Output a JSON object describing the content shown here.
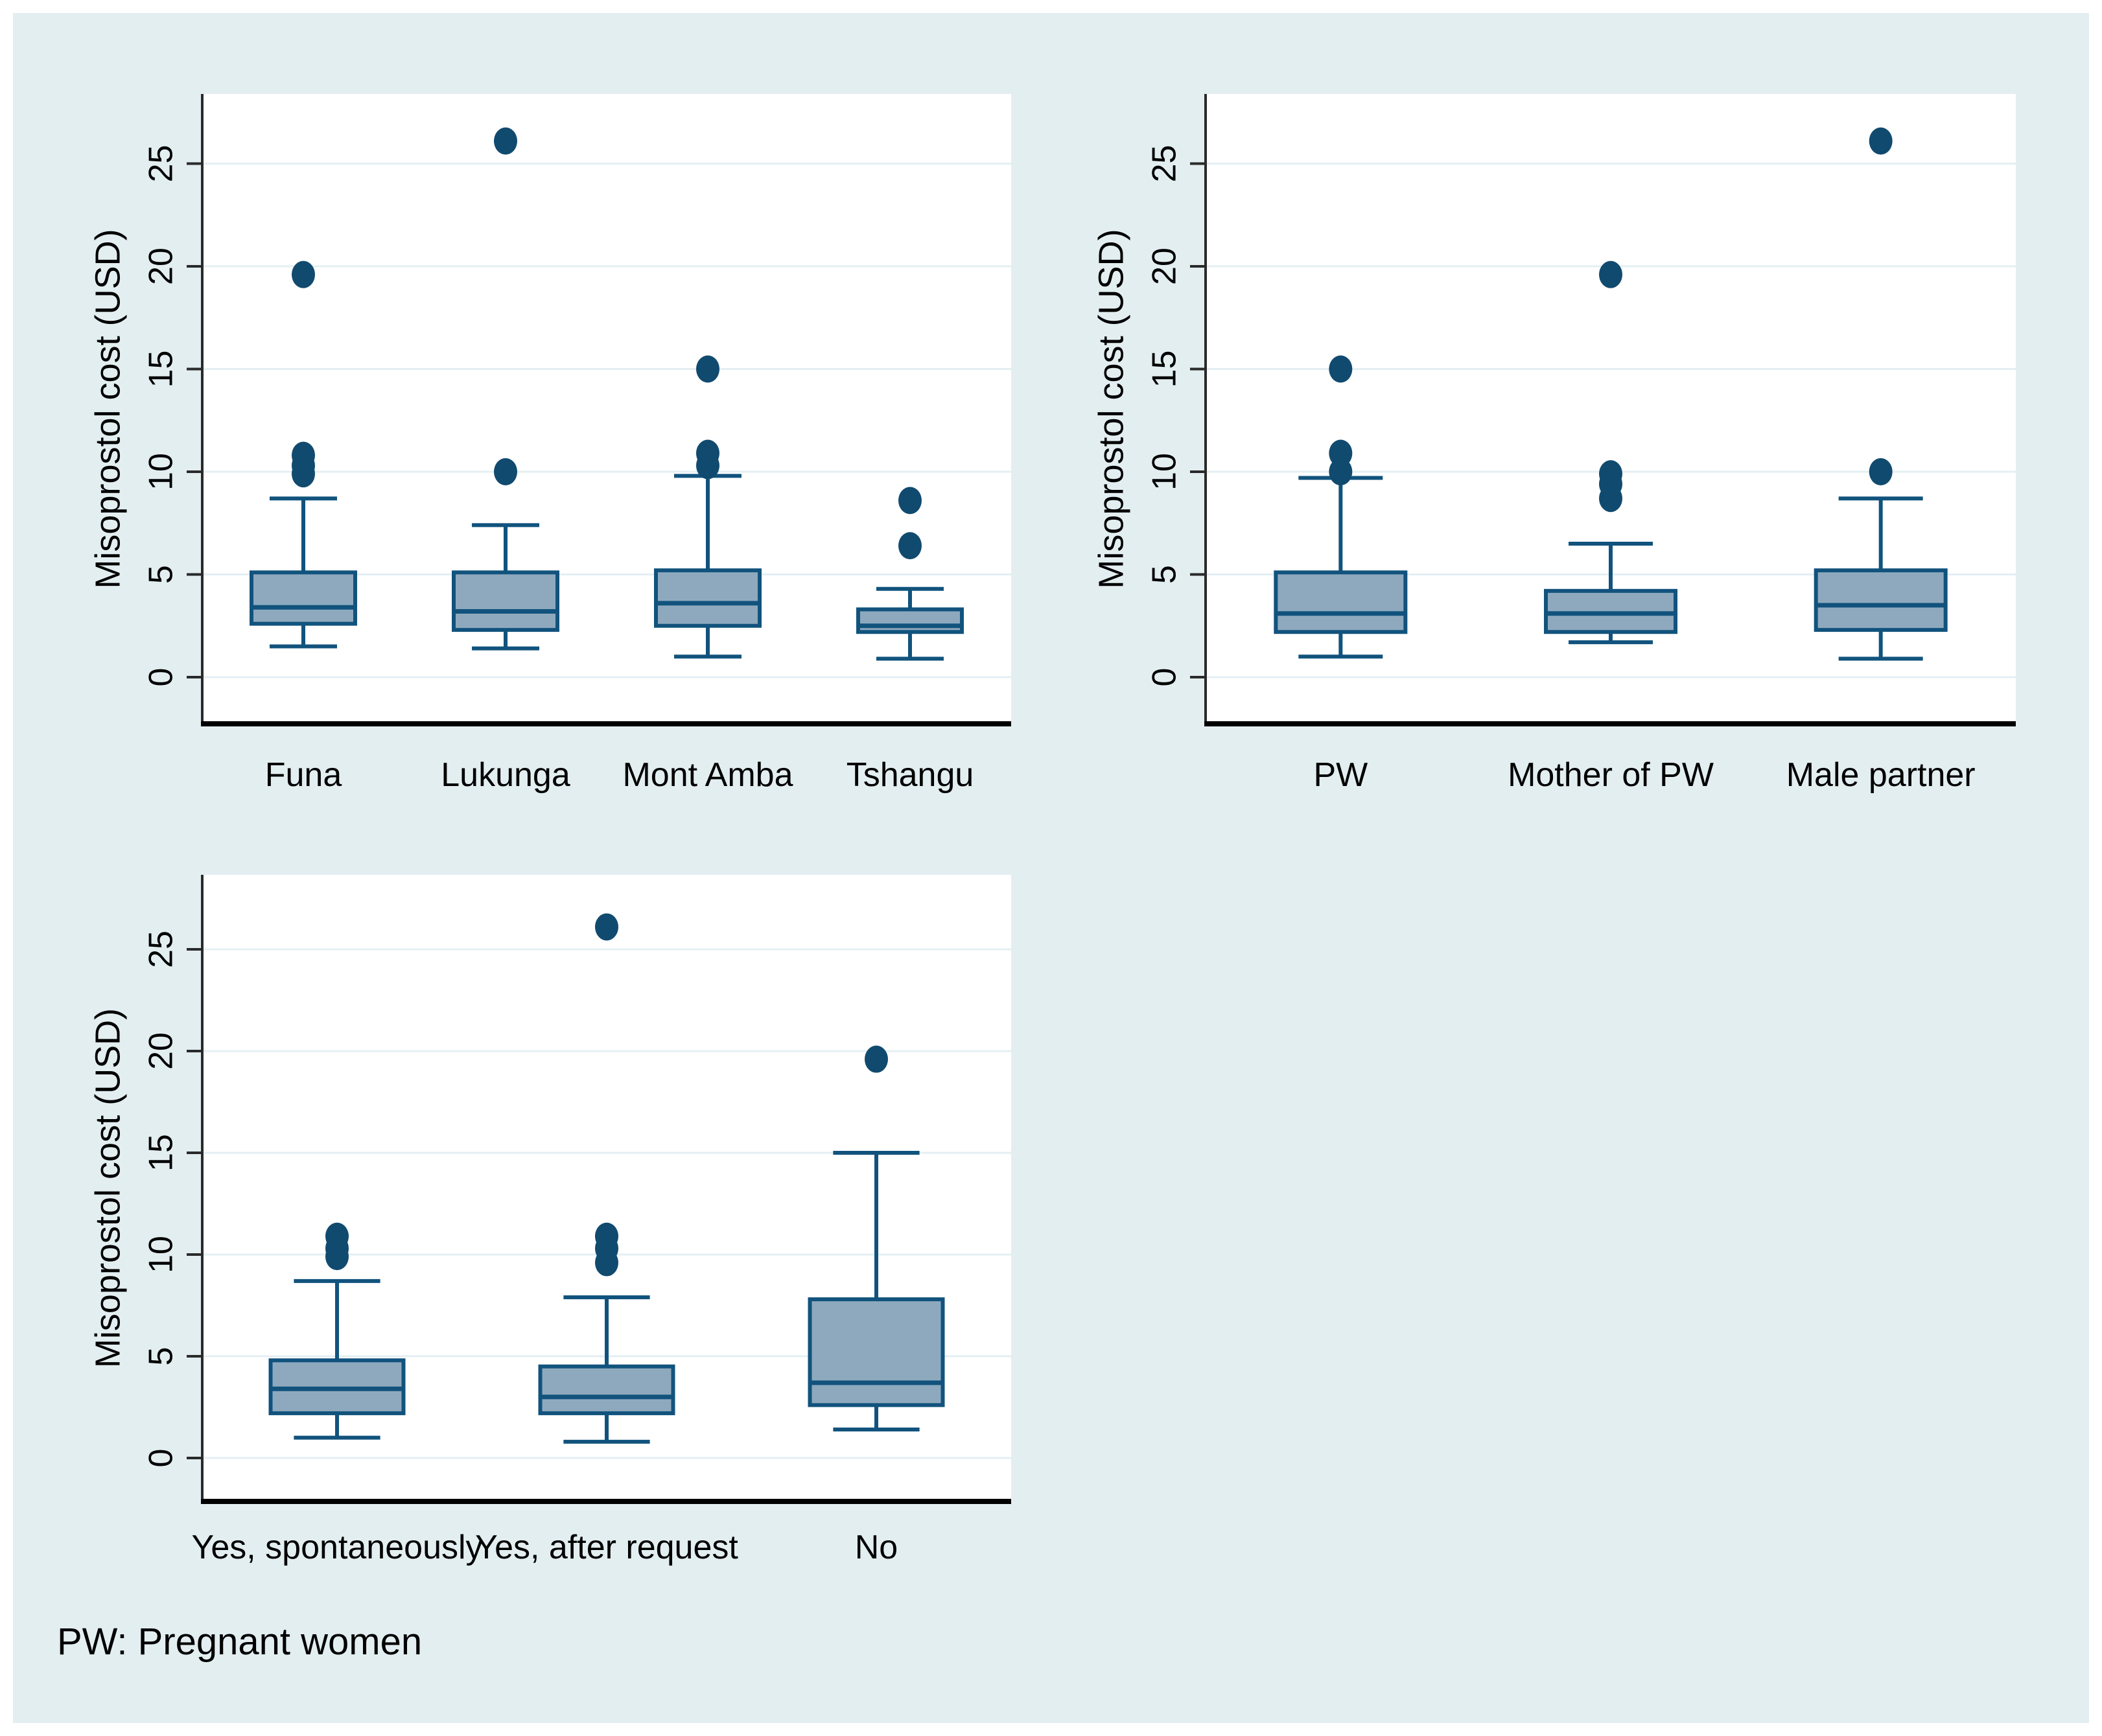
{
  "figure": {
    "footer": "PW: Pregnant women",
    "ylabel": "Misoprostol cost (USD)",
    "background": "#e3eef1",
    "plot_background": "#ffffff",
    "grid_color": "#e4eff3",
    "axis_color": "#2a2a2a",
    "baseline_color": "#000000",
    "box_fill": "#8ea9be",
    "box_border": "#11537d",
    "outlier_color": "#114a6f",
    "yticks": [
      0,
      5,
      10,
      15,
      20,
      25
    ]
  },
  "chart_data": [
    {
      "type": "box",
      "id": "by-district",
      "title": "",
      "xlabel": "",
      "ylabel": "Misoprostol cost (USD)",
      "ylim": [
        -2.3,
        28.4
      ],
      "yticks": [
        0,
        5,
        10,
        15,
        20,
        25
      ],
      "grid": true,
      "categories": [
        "Funa",
        "Lukunga",
        "Mont Amba",
        "Tshangu"
      ],
      "boxes": [
        {
          "category": "Funa",
          "low": 1.5,
          "q1": 2.6,
          "median": 3.4,
          "q3": 5.1,
          "high": 8.7,
          "outliers": [
            9.9,
            10.3,
            10.8,
            19.6
          ]
        },
        {
          "category": "Lukunga",
          "low": 1.4,
          "q1": 2.3,
          "median": 3.2,
          "q3": 5.1,
          "high": 7.4,
          "outliers": [
            10.0,
            26.1
          ]
        },
        {
          "category": "Mont Amba",
          "low": 1.0,
          "q1": 2.5,
          "median": 3.6,
          "q3": 5.2,
          "high": 9.8,
          "outliers": [
            10.3,
            10.9,
            15.0
          ]
        },
        {
          "category": "Tshangu",
          "low": 0.9,
          "q1": 2.2,
          "median": 2.5,
          "q3": 3.3,
          "high": 4.3,
          "outliers": [
            6.4,
            8.6
          ]
        }
      ]
    },
    {
      "type": "box",
      "id": "by-respondent",
      "title": "",
      "xlabel": "",
      "ylabel": "Misoprostol cost (USD)",
      "ylim": [
        -2.3,
        28.4
      ],
      "yticks": [
        0,
        5,
        10,
        15,
        20,
        25
      ],
      "grid": true,
      "categories": [
        "PW",
        "Mother of PW",
        "Male partner"
      ],
      "boxes": [
        {
          "category": "PW",
          "low": 1.0,
          "q1": 2.2,
          "median": 3.1,
          "q3": 5.1,
          "high": 9.7,
          "outliers": [
            10.0,
            10.9,
            15.0
          ]
        },
        {
          "category": "Mother of PW",
          "low": 1.7,
          "q1": 2.2,
          "median": 3.1,
          "q3": 4.2,
          "high": 6.5,
          "outliers": [
            8.7,
            9.4,
            9.9,
            19.6
          ]
        },
        {
          "category": "Male partner",
          "low": 0.9,
          "q1": 2.3,
          "median": 3.5,
          "q3": 5.2,
          "high": 8.7,
          "outliers": [
            10.0,
            26.1
          ]
        }
      ]
    },
    {
      "type": "box",
      "id": "by-counselling",
      "title": "",
      "xlabel": "",
      "ylabel": "Misoprostol cost (USD)",
      "ylim": [
        -2.1,
        28.6
      ],
      "yticks": [
        0,
        5,
        10,
        15,
        20,
        25
      ],
      "grid": true,
      "categories": [
        "Yes, spontaneously",
        "Yes, after request",
        "No"
      ],
      "boxes": [
        {
          "category": "Yes, spontaneously",
          "low": 1.0,
          "q1": 2.2,
          "median": 3.4,
          "q3": 4.8,
          "high": 8.7,
          "outliers": [
            9.9,
            10.3,
            10.9
          ]
        },
        {
          "category": "Yes, after request",
          "low": 0.8,
          "q1": 2.2,
          "median": 3.0,
          "q3": 4.5,
          "high": 7.9,
          "outliers": [
            9.6,
            10.3,
            10.9,
            26.1
          ]
        },
        {
          "category": "No",
          "low": 1.4,
          "q1": 2.6,
          "median": 3.7,
          "q3": 7.8,
          "high": 15.0,
          "outliers": [
            19.6
          ]
        }
      ]
    }
  ]
}
